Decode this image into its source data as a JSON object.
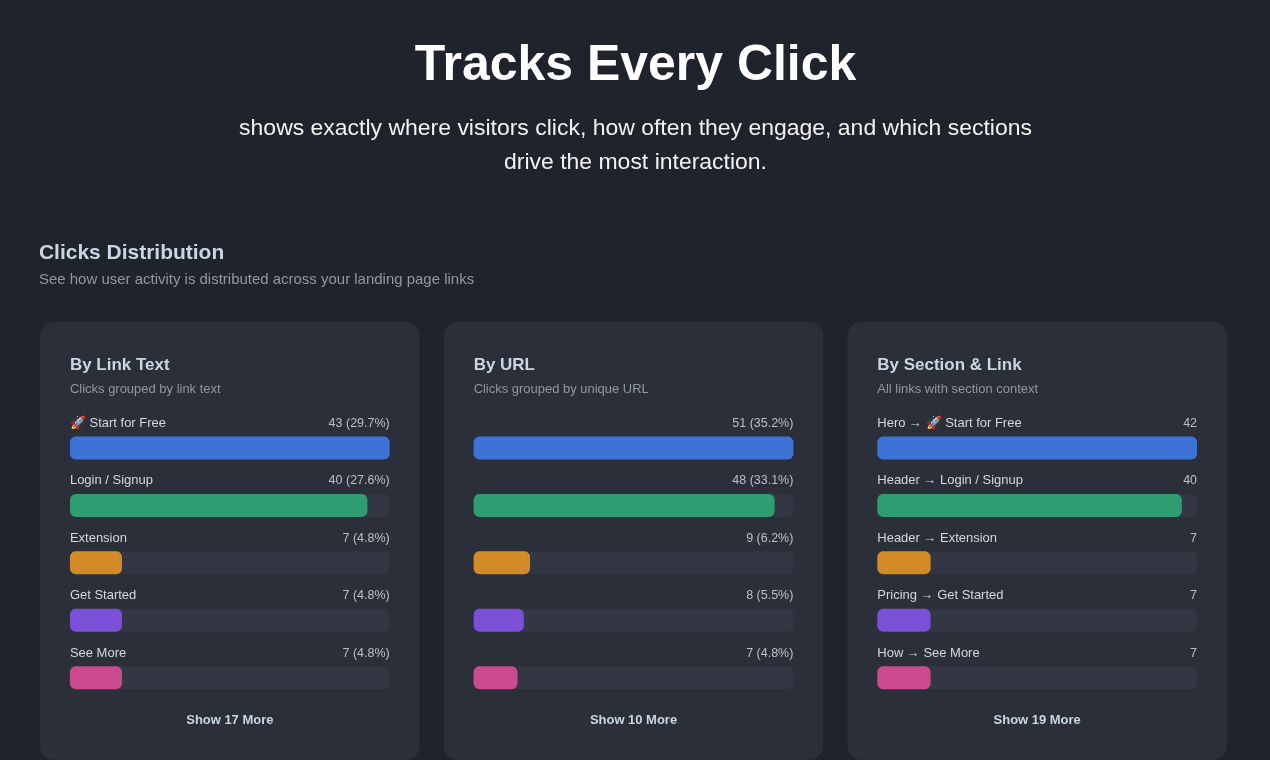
{
  "chart_data": [
    {
      "type": "other",
      "title": "Tracks Every Click",
      "subtitle": "shows exactly where visitors click, how often they engage, and which sections drive the most interaction.",
      "annotations": [
        "Clicks Distribution",
        "See how user activity is distributed across your landing page links"
      ]
    },
    {
      "type": "bar",
      "orientation": "horizontal",
      "title": "By Link Text",
      "subtitle": "Clicks grouped by link text",
      "categories": [
        "🚀 Start for Free",
        "Login / Signup",
        "Extension",
        "Get Started",
        "See More"
      ],
      "values": [
        43,
        40,
        7,
        7,
        7
      ],
      "colors": [
        "#3f72d6",
        "#2e9e72",
        "#d38b27",
        "#7c4fd8",
        "#cc4a8e"
      ],
      "value_labels": [
        "43 (29.7%)",
        "40 (27.6%)",
        "7 (4.8%)",
        "7 (4.8%)",
        "7 (4.8%)"
      ],
      "annotations": [
        "Show 17 More"
      ]
    },
    {
      "type": "bar",
      "orientation": "horizontal",
      "title": "By URL",
      "subtitle": "Clicks grouped by unique URL",
      "categories": [
        null,
        null,
        null,
        null,
        null
      ],
      "values": [
        51,
        48,
        9,
        8,
        7
      ],
      "colors": [
        "#3f72d6",
        "#2e9e72",
        "#d38b27",
        "#7c4fd8",
        "#cc4a8e"
      ],
      "value_labels": [
        "51 (35.2%)",
        "48 (33.1%)",
        "9 (6.2%)",
        "8 (5.5%)",
        "7 (4.8%)"
      ],
      "annotations": [
        "Show 10 More"
      ]
    },
    {
      "type": "bar",
      "orientation": "horizontal",
      "title": "By Section & Link",
      "subtitle": "All links with section context",
      "categories": [
        "Hero → 🚀 Start for Free",
        "Header → Login / Signup",
        "Header → Extension",
        "Pricing → Get Started",
        "How → See More"
      ],
      "values": [
        42,
        40,
        7,
        7,
        7
      ],
      "colors": [
        "#3f72d6",
        "#2e9e72",
        "#d38b27",
        "#7c4fd8",
        "#cc4a8e"
      ],
      "data_labels": true,
      "annotations": [
        "Show 19 More"
      ]
    }
  ]
}
